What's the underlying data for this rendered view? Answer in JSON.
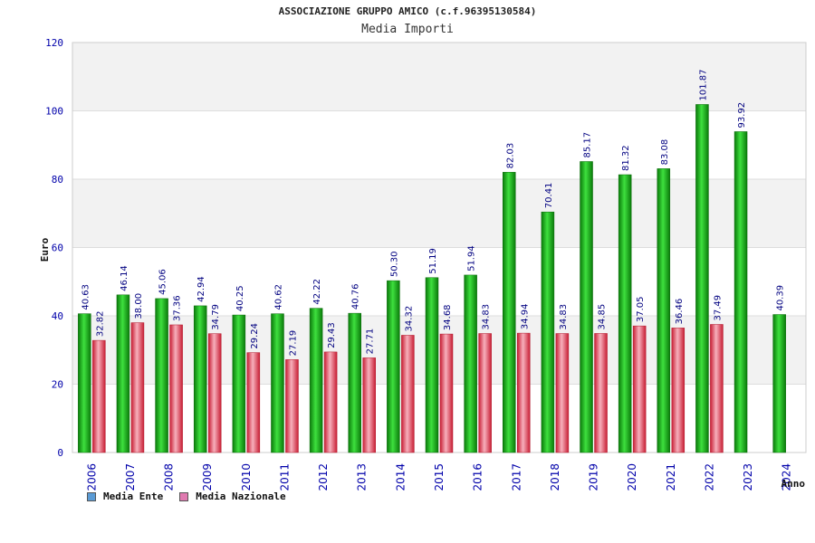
{
  "header": {
    "title": "ASSOCIAZIONE GRUPPO AMICO (c.f.96395130584)",
    "subtitle": "Media Importi"
  },
  "legend": [
    {
      "label": "Media Ente",
      "color": "#5b9bd5"
    },
    {
      "label": "Media Nazionale",
      "color": "#e07ab0"
    }
  ],
  "colors": {
    "ente_bar": "#1fb51f",
    "nazionale_bar": "#e8394d",
    "axis_text": "#0000aa",
    "label_text": "#000080",
    "band": "#f2f2f2",
    "grid": "#dddddd"
  },
  "chart_data": {
    "type": "bar",
    "title": "ASSOCIAZIONE GRUPPO AMICO (c.f.96395130584)",
    "subtitle": "Media Importi",
    "xlabel": "Anno",
    "ylabel": "Euro",
    "ylim": [
      0,
      120
    ],
    "yticks": [
      0,
      20,
      40,
      60,
      80,
      100,
      120
    ],
    "grid": true,
    "legend_position": "bottom-left",
    "categories": [
      "2006",
      "2007",
      "2008",
      "2009",
      "2010",
      "2011",
      "2012",
      "2013",
      "2014",
      "2015",
      "2016",
      "2017",
      "2018",
      "2019",
      "2020",
      "2021",
      "2022",
      "2023",
      "2024"
    ],
    "value_labels_ente": [
      "40.63",
      "46.14",
      "45.06",
      "42.94",
      "40.25",
      "40.62",
      "42.22",
      "40.76",
      "50.30",
      "51.19",
      "51.94",
      "82.03",
      "70.41",
      "85.17",
      "81.32",
      "83.08",
      "101.87",
      "93.92",
      "40.39"
    ],
    "value_labels_nazionale": [
      "32.82",
      "38.00",
      "37.36",
      "34.79",
      "29.24",
      "27.19",
      "29.43",
      "27.71",
      "34.32",
      "34.68",
      "34.83",
      "34.94",
      "34.83",
      "34.85",
      "37.05",
      "36.46",
      "37.49",
      null,
      null
    ],
    "series": [
      {
        "name": "Media Ente",
        "values": [
          40.63,
          46.14,
          45.06,
          42.94,
          40.25,
          40.62,
          42.22,
          40.76,
          50.3,
          51.19,
          51.94,
          82.03,
          70.41,
          85.17,
          81.32,
          83.08,
          101.87,
          93.92,
          40.39
        ]
      },
      {
        "name": "Media Nazionale",
        "values": [
          32.82,
          38.0,
          37.36,
          34.79,
          29.24,
          27.19,
          29.43,
          27.71,
          34.32,
          34.68,
          34.83,
          34.94,
          34.83,
          34.85,
          37.05,
          36.46,
          37.49,
          null,
          null
        ]
      }
    ]
  }
}
